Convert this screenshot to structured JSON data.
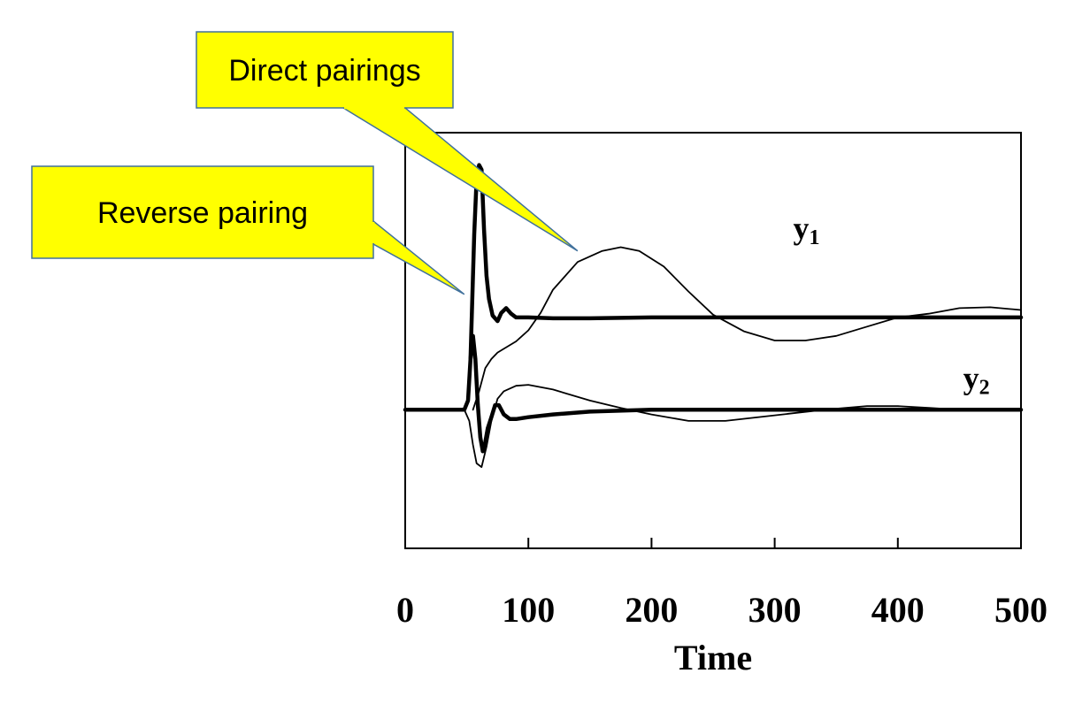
{
  "chart_data": {
    "type": "line",
    "title": "",
    "xlabel": "Time",
    "ylabel": "",
    "xlim": [
      0,
      500
    ],
    "ylim": [
      -1.5,
      3.0
    ],
    "x_ticks": [
      "0",
      "100",
      "200",
      "300",
      "400",
      "500"
    ],
    "grid": false,
    "legend": "none",
    "series": [
      {
        "name": "y1",
        "pairing": "Reverse pairing",
        "line_style": "thick",
        "color": "#000000",
        "x": [
          0,
          45,
          50,
          53,
          56,
          58,
          60,
          62,
          64,
          66,
          68,
          71,
          75,
          78,
          82,
          86,
          90,
          100,
          120,
          150,
          200,
          300,
          400,
          500
        ],
        "y": [
          null,
          null,
          null,
          0.55,
          1.9,
          2.5,
          2.65,
          2.6,
          1.95,
          1.45,
          1.2,
          1.02,
          0.96,
          1.05,
          1.1,
          1.04,
          1.0,
          1.0,
          0.99,
          0.99,
          1.0,
          1.0,
          1.0,
          1.0
        ]
      },
      {
        "name": "y1",
        "pairing": "Direct pairings",
        "line_style": "thin",
        "color": "#000000",
        "x": [
          0,
          50,
          55,
          60,
          65,
          70,
          75,
          80,
          90,
          100,
          110,
          120,
          140,
          160,
          175,
          190,
          210,
          230,
          250,
          275,
          300,
          325,
          350,
          375,
          400,
          425,
          450,
          475,
          500
        ],
        "y": [
          null,
          null,
          0.0,
          0.2,
          0.45,
          0.55,
          0.62,
          0.66,
          0.74,
          0.86,
          1.05,
          1.3,
          1.6,
          1.72,
          1.76,
          1.72,
          1.55,
          1.28,
          1.03,
          0.85,
          0.75,
          0.75,
          0.8,
          0.9,
          1.0,
          1.04,
          1.1,
          1.11,
          1.08
        ]
      },
      {
        "name": "y2",
        "pairing": "Reverse pairing",
        "line_style": "thick",
        "color": "#000000",
        "x": [
          0,
          48,
          51,
          53,
          55,
          57,
          59,
          61,
          63,
          65,
          67,
          70,
          73,
          76,
          80,
          85,
          90,
          100,
          120,
          150,
          200,
          300,
          400,
          500
        ],
        "y": [
          0.0,
          0.0,
          0.1,
          0.55,
          0.8,
          0.55,
          0.05,
          -0.3,
          -0.45,
          -0.35,
          -0.2,
          -0.08,
          0.05,
          0.05,
          -0.05,
          -0.1,
          -0.1,
          -0.08,
          -0.05,
          -0.02,
          0.0,
          0.0,
          0.0,
          0.0
        ]
      },
      {
        "name": "y2",
        "pairing": "Direct pairings",
        "line_style": "thin",
        "color": "#000000",
        "x": [
          0,
          48,
          52,
          55,
          58,
          62,
          66,
          70,
          75,
          80,
          90,
          100,
          120,
          150,
          175,
          200,
          230,
          260,
          300,
          340,
          375,
          400,
          425,
          450,
          475,
          500
        ],
        "y": [
          0.0,
          0.0,
          -0.12,
          -0.38,
          -0.58,
          -0.62,
          -0.4,
          -0.12,
          0.12,
          0.2,
          0.26,
          0.27,
          0.22,
          0.1,
          0.02,
          -0.05,
          -0.12,
          -0.12,
          -0.06,
          0.0,
          0.04,
          0.04,
          0.02,
          0.0,
          0.0,
          0.0
        ]
      }
    ],
    "series_labels": [
      {
        "label": "y",
        "subscript": "1",
        "x": 315,
        "y": 1.85
      },
      {
        "label": "y",
        "subscript": "2",
        "x": 453,
        "y": 0.23
      }
    ],
    "annotations": [
      {
        "text": "Direct pairings",
        "points_to": {
          "x": 140,
          "y": 1.72
        }
      },
      {
        "text": "Reverse pairing",
        "points_to": {
          "x": 48,
          "y": 1.25
        }
      }
    ]
  }
}
